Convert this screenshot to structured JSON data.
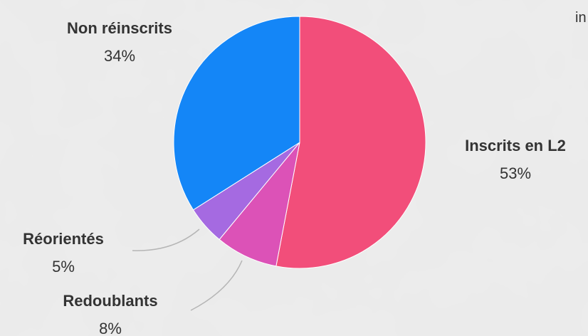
{
  "top_right_fragment": "in",
  "colors": {
    "background": "#ececec",
    "label_text": "#333333",
    "leader_line": "#b5b5b5",
    "slice_border": "#ffffff"
  },
  "chart_data": {
    "type": "pie",
    "start_angle_deg": 0,
    "direction": "clockwise",
    "slices": [
      {
        "label": "Inscrits en L2",
        "value": 53,
        "value_label": "53%",
        "color": "#f24e7a"
      },
      {
        "label": "Redoublants",
        "value": 8,
        "value_label": "8%",
        "color": "#dc52b7"
      },
      {
        "label": "Réorientés",
        "value": 5,
        "value_label": "5%",
        "color": "#a56ae1"
      },
      {
        "label": "Non réinscrits",
        "value": 34,
        "value_label": "34%",
        "color": "#1486f7"
      }
    ]
  }
}
